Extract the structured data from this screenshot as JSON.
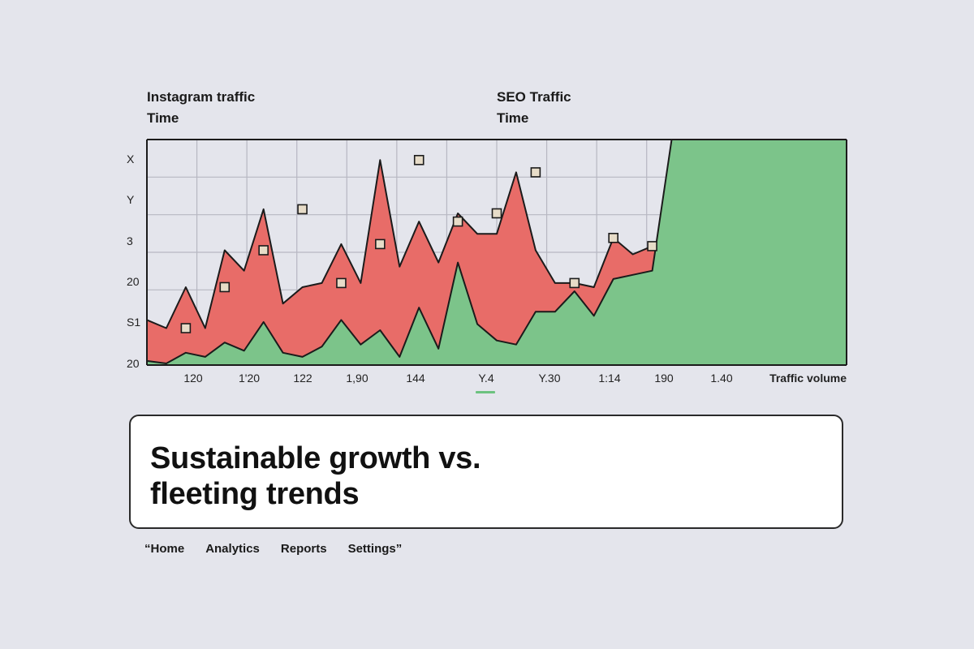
{
  "series_labels": {
    "instagram": {
      "name": "Instagram traffic",
      "sub": "Time"
    },
    "seo": {
      "name": "SEO Traffic",
      "sub": "Time"
    }
  },
  "colors": {
    "instagram_fill": "#e86c68",
    "seo_fill": "#7cc48a",
    "marker_fill": "#e7dcc8",
    "grid": "#b7b7c2",
    "background": "#e4e5ec",
    "nav_indicator": "#6cc27f"
  },
  "chart_data": {
    "type": "area",
    "title": "",
    "xlabel": "Traffic volume",
    "ylabel": "",
    "y_tick_labels": [
      "X",
      "Y",
      "3",
      "20",
      "S1",
      "20"
    ],
    "x_tick_labels": [
      "120",
      "1'20",
      "122",
      "1,90",
      "144",
      "Y.4",
      "Y.30",
      "1:14",
      "190",
      "1.40"
    ],
    "x": [
      0,
      0.5,
      1,
      1.5,
      2,
      2.5,
      3,
      3.5,
      4,
      4.5,
      5,
      5.5,
      6,
      6.5,
      7,
      7.5,
      8,
      8.5,
      9,
      9.5,
      10,
      10.5,
      11,
      11.5,
      12,
      12.5,
      13,
      13.5,
      14,
      14.5,
      15,
      15.5,
      16,
      16.5,
      17,
      17.5,
      18
    ],
    "series": [
      {
        "name": "SEO Traffic",
        "values": [
          0.1,
          0.04,
          0.3,
          0.2,
          0.55,
          0.35,
          1.05,
          0.3,
          0.2,
          0.45,
          1.1,
          0.5,
          0.85,
          0.2,
          1.4,
          0.4,
          2.5,
          1.0,
          0.6,
          0.5,
          1.3,
          1.3,
          1.8,
          1.2,
          2.1,
          2.2,
          2.3,
          5.5,
          5.5,
          5.5,
          5.5,
          5.5,
          5.5,
          5.5,
          5.5,
          5.5,
          5.5
        ]
      },
      {
        "name": "Instagram traffic",
        "values": [
          1.1,
          0.9,
          1.9,
          0.9,
          2.8,
          2.3,
          3.8,
          1.5,
          1.9,
          2.0,
          2.95,
          2.0,
          5.0,
          2.4,
          3.5,
          2.5,
          3.7,
          3.2,
          3.2,
          4.7,
          2.8,
          2.0,
          2.0,
          1.9,
          3.1,
          2.7,
          2.9,
          3.1,
          5.5,
          5.5,
          5.5,
          5.5,
          5.5,
          5.5,
          5.5,
          5.5,
          5.5
        ]
      }
    ],
    "marker_points": [
      {
        "x": 1,
        "y": 0.9
      },
      {
        "x": 2,
        "y": 1.9
      },
      {
        "x": 3,
        "y": 2.8
      },
      {
        "x": 4,
        "y": 3.8
      },
      {
        "x": 5,
        "y": 2.0
      },
      {
        "x": 6,
        "y": 2.95
      },
      {
        "x": 7,
        "y": 5.0
      },
      {
        "x": 8,
        "y": 3.5
      },
      {
        "x": 9,
        "y": 3.7
      },
      {
        "x": 10,
        "y": 4.7
      },
      {
        "x": 11,
        "y": 2.0
      },
      {
        "x": 12,
        "y": 3.1
      },
      {
        "x": 13,
        "y": 2.9
      }
    ],
    "ylim": [
      0,
      5.5
    ],
    "grid": true,
    "legend": "top"
  },
  "headline": {
    "line1": "Sustainable growth vs.",
    "line2": "fleeting trends"
  },
  "nav": {
    "open_quote": "“",
    "items": [
      "Home",
      "Analytics",
      "Reports",
      "Settings"
    ],
    "close_quote": "”"
  }
}
